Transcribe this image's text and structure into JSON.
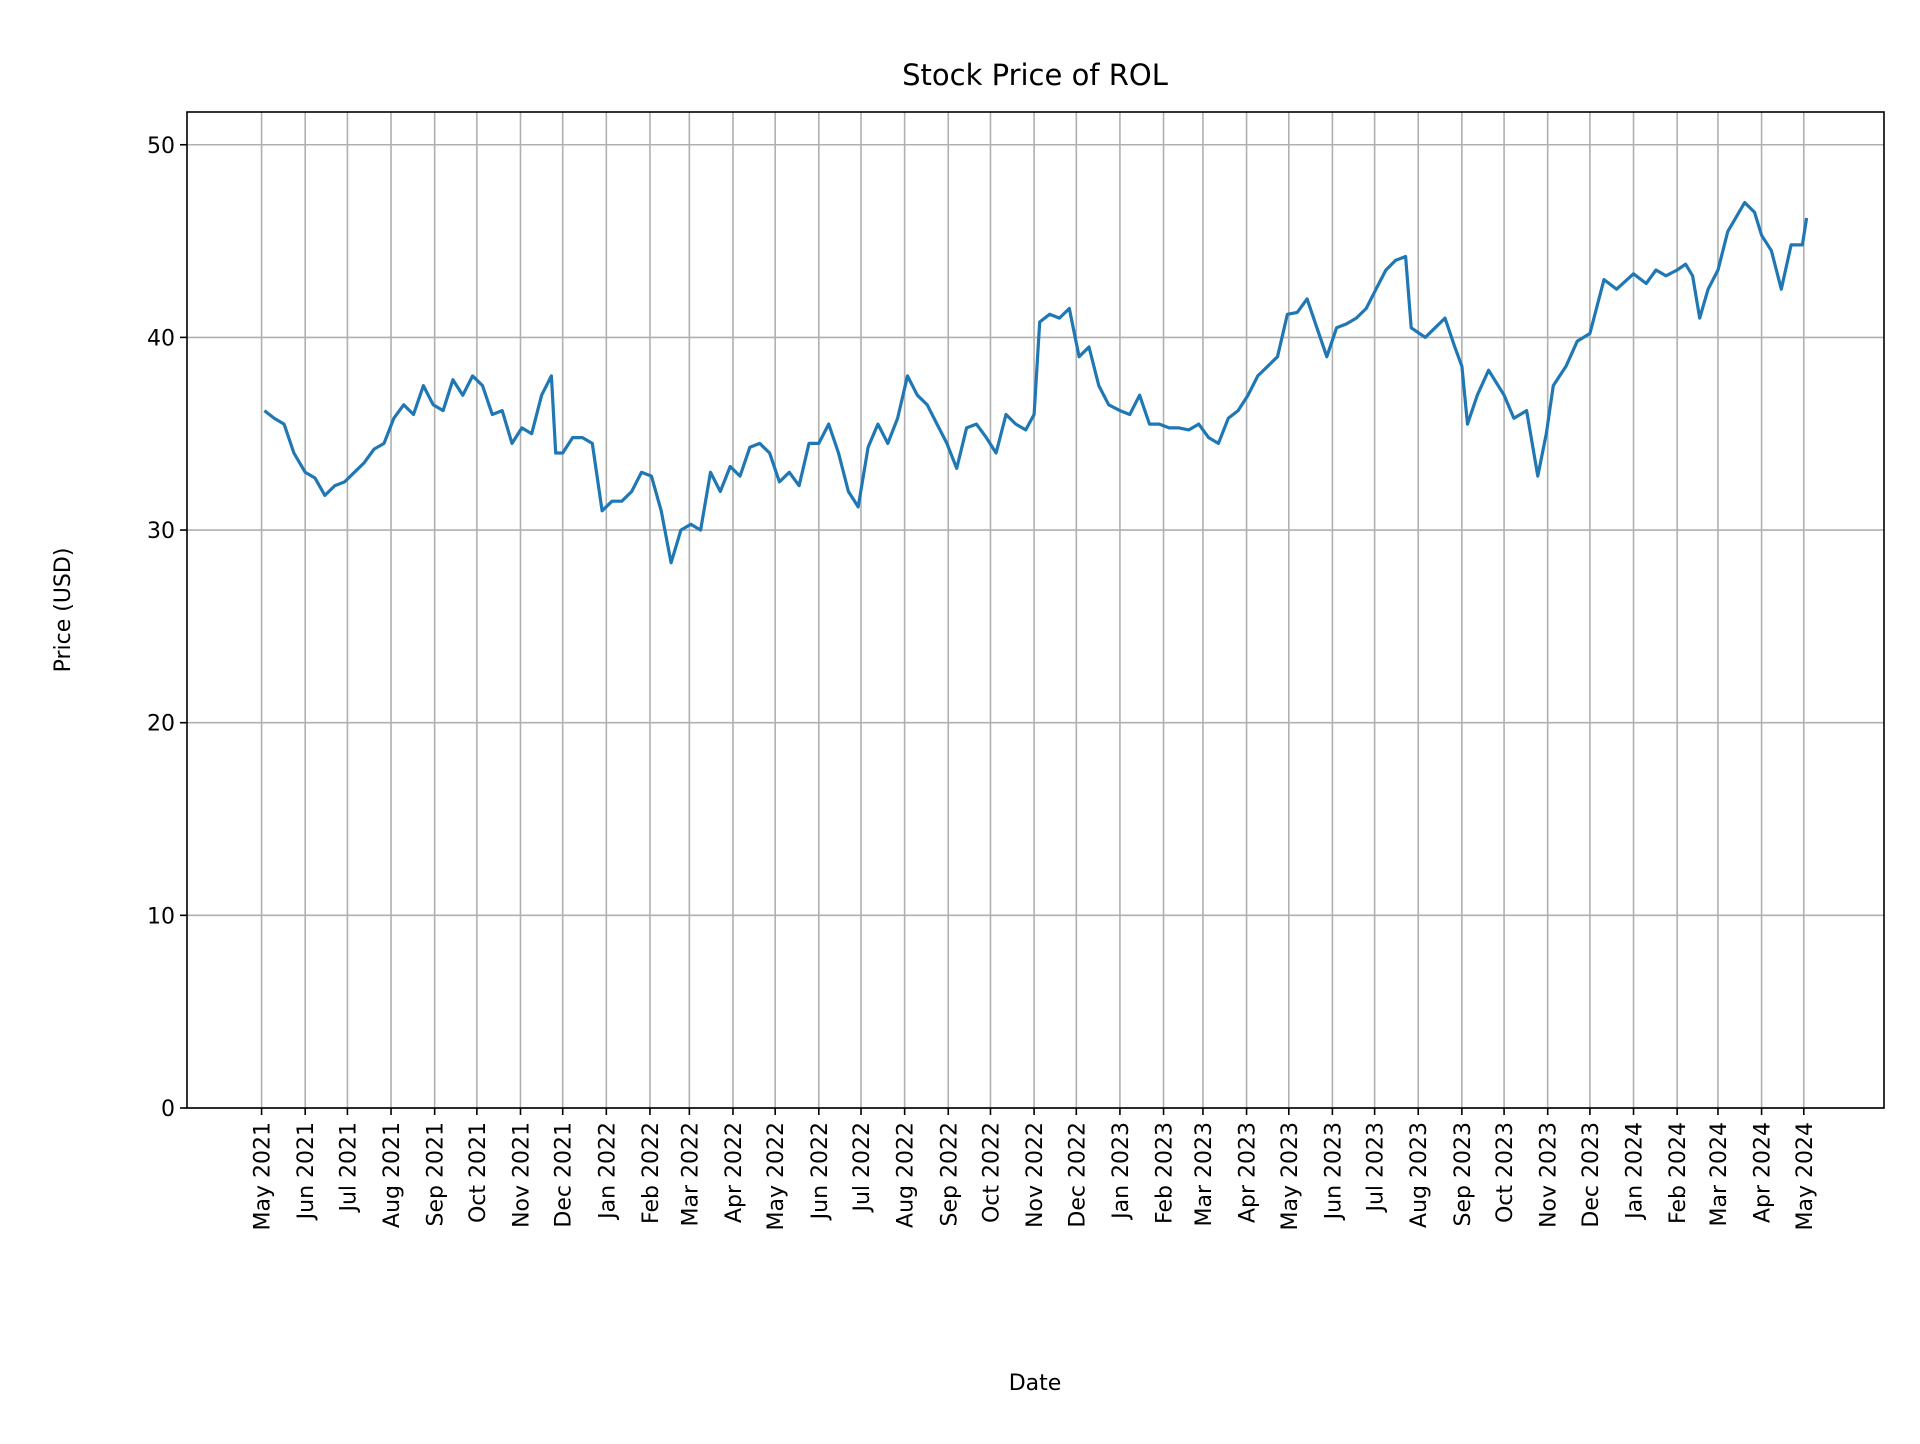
{
  "chart_data": {
    "type": "line",
    "title": "Stock Price of ROL",
    "xlabel": "Date",
    "ylabel": "Price (USD)",
    "ylim": [
      0,
      51.7
    ],
    "xlim": [
      "2021-03-09",
      "2024-06-27"
    ],
    "grid": true,
    "line_color": "#1f77b4",
    "yticks": [
      0,
      10,
      20,
      30,
      40,
      50
    ],
    "xticks": [
      {
        "date": "2021-05-01",
        "label": "May 2021"
      },
      {
        "date": "2021-06-01",
        "label": "Jun 2021"
      },
      {
        "date": "2021-07-01",
        "label": "Jul 2021"
      },
      {
        "date": "2021-08-01",
        "label": "Aug 2021"
      },
      {
        "date": "2021-09-01",
        "label": "Sep 2021"
      },
      {
        "date": "2021-10-01",
        "label": "Oct 2021"
      },
      {
        "date": "2021-11-01",
        "label": "Nov 2021"
      },
      {
        "date": "2021-12-01",
        "label": "Dec 2021"
      },
      {
        "date": "2022-01-01",
        "label": "Jan 2022"
      },
      {
        "date": "2022-02-01",
        "label": "Feb 2022"
      },
      {
        "date": "2022-03-01",
        "label": "Mar 2022"
      },
      {
        "date": "2022-04-01",
        "label": "Apr 2022"
      },
      {
        "date": "2022-05-01",
        "label": "May 2022"
      },
      {
        "date": "2022-06-01",
        "label": "Jun 2022"
      },
      {
        "date": "2022-07-01",
        "label": "Jul 2022"
      },
      {
        "date": "2022-08-01",
        "label": "Aug 2022"
      },
      {
        "date": "2022-09-01",
        "label": "Sep 2022"
      },
      {
        "date": "2022-10-01",
        "label": "Oct 2022"
      },
      {
        "date": "2022-11-01",
        "label": "Nov 2022"
      },
      {
        "date": "2022-12-01",
        "label": "Dec 2022"
      },
      {
        "date": "2023-01-01",
        "label": "Jan 2023"
      },
      {
        "date": "2023-02-01",
        "label": "Feb 2023"
      },
      {
        "date": "2023-03-01",
        "label": "Mar 2023"
      },
      {
        "date": "2023-04-01",
        "label": "Apr 2023"
      },
      {
        "date": "2023-05-01",
        "label": "May 2023"
      },
      {
        "date": "2023-06-01",
        "label": "Jun 2023"
      },
      {
        "date": "2023-07-01",
        "label": "Jul 2023"
      },
      {
        "date": "2023-08-01",
        "label": "Aug 2023"
      },
      {
        "date": "2023-09-01",
        "label": "Sep 2023"
      },
      {
        "date": "2023-10-01",
        "label": "Oct 2023"
      },
      {
        "date": "2023-11-01",
        "label": "Nov 2023"
      },
      {
        "date": "2023-12-01",
        "label": "Dec 2023"
      },
      {
        "date": "2024-01-01",
        "label": "Jan 2024"
      },
      {
        "date": "2024-02-01",
        "label": "Feb 2024"
      },
      {
        "date": "2024-03-01",
        "label": "Mar 2024"
      },
      {
        "date": "2024-04-01",
        "label": "Apr 2024"
      },
      {
        "date": "2024-05-01",
        "label": "May 2024"
      }
    ],
    "series": [
      {
        "x": [
          "2021-05-03",
          "2021-05-10",
          "2021-05-17",
          "2021-05-24",
          "2021-06-01",
          "2021-06-08",
          "2021-06-15",
          "2021-06-22",
          "2021-06-29",
          "2021-07-06",
          "2021-07-13",
          "2021-07-20",
          "2021-07-27",
          "2021-08-03",
          "2021-08-10",
          "2021-08-17",
          "2021-08-24",
          "2021-08-31",
          "2021-09-07",
          "2021-09-14",
          "2021-09-21",
          "2021-09-28",
          "2021-10-05",
          "2021-10-12",
          "2021-10-19",
          "2021-10-26",
          "2021-11-02",
          "2021-11-09",
          "2021-11-16",
          "2021-11-23",
          "2021-11-26",
          "2021-12-01",
          "2021-12-08",
          "2021-12-15",
          "2021-12-22",
          "2021-12-29",
          "2022-01-05",
          "2022-01-12",
          "2022-01-19",
          "2022-01-26",
          "2022-02-02",
          "2022-02-09",
          "2022-02-16",
          "2022-02-23",
          "2022-03-02",
          "2022-03-09",
          "2022-03-16",
          "2022-03-23",
          "2022-03-30",
          "2022-04-06",
          "2022-04-13",
          "2022-04-20",
          "2022-04-27",
          "2022-05-04",
          "2022-05-11",
          "2022-05-18",
          "2022-05-25",
          "2022-06-01",
          "2022-06-08",
          "2022-06-15",
          "2022-06-22",
          "2022-06-29",
          "2022-07-06",
          "2022-07-13",
          "2022-07-20",
          "2022-07-27",
          "2022-08-03",
          "2022-08-10",
          "2022-08-17",
          "2022-08-24",
          "2022-08-31",
          "2022-09-07",
          "2022-09-14",
          "2022-09-21",
          "2022-09-28",
          "2022-10-05",
          "2022-10-12",
          "2022-10-19",
          "2022-10-26",
          "2022-11-01",
          "2022-11-05",
          "2022-11-12",
          "2022-11-19",
          "2022-11-26",
          "2022-12-03",
          "2022-12-10",
          "2022-12-17",
          "2022-12-24",
          "2023-01-01",
          "2023-01-08",
          "2023-01-15",
          "2023-01-22",
          "2023-01-29",
          "2023-02-05",
          "2023-02-12",
          "2023-02-19",
          "2023-02-26",
          "2023-03-05",
          "2023-03-12",
          "2023-03-19",
          "2023-03-26",
          "2023-04-02",
          "2023-04-09",
          "2023-04-16",
          "2023-04-23",
          "2023-04-30",
          "2023-05-07",
          "2023-05-14",
          "2023-05-21",
          "2023-05-28",
          "2023-06-04",
          "2023-06-11",
          "2023-06-18",
          "2023-06-25",
          "2023-07-02",
          "2023-07-09",
          "2023-07-16",
          "2023-07-23",
          "2023-07-27",
          "2023-08-06",
          "2023-08-13",
          "2023-08-20",
          "2023-08-27",
          "2023-09-01",
          "2023-09-05",
          "2023-09-12",
          "2023-09-20",
          "2023-10-01",
          "2023-10-08",
          "2023-10-17",
          "2023-10-25",
          "2023-10-31",
          "2023-11-05",
          "2023-11-14",
          "2023-11-22",
          "2023-12-01",
          "2023-12-11",
          "2023-12-20",
          "2024-01-01",
          "2024-01-10",
          "2024-01-17",
          "2024-01-24",
          "2024-02-01",
          "2024-02-07",
          "2024-02-12",
          "2024-02-17",
          "2024-02-23",
          "2024-03-01",
          "2024-03-08",
          "2024-03-20",
          "2024-03-27",
          "2024-04-01",
          "2024-04-08",
          "2024-04-15",
          "2024-04-22",
          "2024-04-30",
          "2024-05-03"
        ],
        "y": [
          36.2,
          35.8,
          35.5,
          34.0,
          33.0,
          32.7,
          31.8,
          32.3,
          32.5,
          33.0,
          33.5,
          34.2,
          34.5,
          35.8,
          36.5,
          36.0,
          37.5,
          36.5,
          36.2,
          37.8,
          37.0,
          38.0,
          37.5,
          36.0,
          36.2,
          34.5,
          35.3,
          35.0,
          37.0,
          38.0,
          34.0,
          34.0,
          34.8,
          34.8,
          34.5,
          31.0,
          31.5,
          31.5,
          32.0,
          33.0,
          32.8,
          31.0,
          28.3,
          30.0,
          30.3,
          30.0,
          33.0,
          32.0,
          33.3,
          32.8,
          34.3,
          34.5,
          34.0,
          32.5,
          33.0,
          32.3,
          34.5,
          34.5,
          35.5,
          34.0,
          32.0,
          31.2,
          34.3,
          35.5,
          34.5,
          35.8,
          38.0,
          37.0,
          36.5,
          35.5,
          34.5,
          33.2,
          35.3,
          35.5,
          34.8,
          34.0,
          36.0,
          35.5,
          35.2,
          36.0,
          40.8,
          41.2,
          41.0,
          41.5,
          39.0,
          39.5,
          37.5,
          36.5,
          36.2,
          36.0,
          37.0,
          35.5,
          35.5,
          35.3,
          35.3,
          35.2,
          35.5,
          34.8,
          34.5,
          35.8,
          36.2,
          37.0,
          38.0,
          38.5,
          39.0,
          41.2,
          41.3,
          42.0,
          40.5,
          39.0,
          40.5,
          40.7,
          41.0,
          41.5,
          42.5,
          43.5,
          44.0,
          44.2,
          40.5,
          40.0,
          40.5,
          41.0,
          39.5,
          38.5,
          35.5,
          37.0,
          38.3,
          37.0,
          35.8,
          36.2,
          32.8,
          35.0,
          37.5,
          38.5,
          39.8,
          40.2,
          43.0,
          42.5,
          43.3,
          42.8,
          43.5,
          43.2,
          43.5,
          43.8,
          43.2,
          41.0,
          42.5,
          43.5,
          45.5,
          47.0,
          46.5,
          45.3,
          44.5,
          42.5,
          44.8,
          44.8,
          46.2
        ]
      }
    ]
  }
}
